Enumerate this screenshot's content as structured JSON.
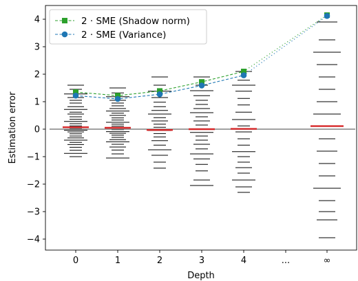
{
  "chart_data": {
    "type": "line",
    "xlabel": "Depth",
    "ylabel": "Estimation error",
    "ylim": [
      -4.4,
      4.5
    ],
    "yticks": [
      {
        "value": 4,
        "label": "4"
      },
      {
        "value": 3,
        "label": "3"
      },
      {
        "value": 2,
        "label": "2"
      },
      {
        "value": 1,
        "label": "1"
      },
      {
        "value": 0,
        "label": "0"
      },
      {
        "value": -1,
        "label": "−1"
      },
      {
        "value": -2,
        "label": "−2"
      },
      {
        "value": -3,
        "label": "−3"
      },
      {
        "value": -4,
        "label": "−4"
      }
    ],
    "categories": [
      "0",
      "1",
      "2",
      "3",
      "4",
      "...",
      "∞"
    ],
    "grid": false,
    "legend_position": "top-left",
    "series": [
      {
        "name": "2 · SME (Shadow norm)",
        "color": "#2ca02c",
        "marker": "square",
        "values": [
          1.35,
          1.22,
          1.39,
          1.72,
          2.1,
          null,
          4.15
        ]
      },
      {
        "name": "2 · SME (Variance)",
        "color": "#1f77b4",
        "marker": "circle",
        "values": [
          1.22,
          1.1,
          1.27,
          1.59,
          1.96,
          null,
          4.12
        ]
      }
    ],
    "mean_error": {
      "color": "#d62728",
      "values": [
        0.07,
        0.05,
        -0.03,
        0.0,
        0.01,
        null,
        0.11
      ]
    },
    "zero_line_color": "#808080",
    "samples": [
      {
        "category": "0",
        "values": [
          1.6,
          1.45,
          1.28,
          1.15,
          1.05,
          0.95,
          0.82,
          0.72,
          0.62,
          0.55,
          0.45,
          0.36,
          0.28,
          0.2,
          0.12,
          0.06,
          0.02,
          -0.04,
          -0.1,
          -0.17,
          -0.25,
          -0.32,
          -0.4,
          -0.48,
          -0.56,
          -0.66,
          -0.77,
          -0.88,
          -1.0
        ]
      },
      {
        "category": "1",
        "values": [
          1.5,
          1.32,
          1.18,
          1.05,
          0.95,
          0.85,
          0.75,
          0.66,
          0.58,
          0.5,
          0.41,
          0.33,
          0.25,
          0.18,
          0.11,
          0.04,
          -0.02,
          -0.09,
          -0.15,
          -0.22,
          -0.3,
          -0.38,
          -0.46,
          -0.55,
          -0.65,
          -0.76,
          -0.9,
          -1.05
        ]
      },
      {
        "category": "2",
        "values": [
          1.9,
          1.6,
          1.38,
          1.15,
          0.98,
          0.82,
          0.68,
          0.55,
          0.42,
          0.3,
          0.18,
          0.07,
          -0.05,
          -0.16,
          -0.28,
          -0.42,
          -0.58,
          -0.75,
          -0.95,
          -1.2,
          -1.42
        ]
      },
      {
        "category": "3",
        "values": [
          1.9,
          1.6,
          1.4,
          1.22,
          1.05,
          0.9,
          0.75,
          0.6,
          0.45,
          0.3,
          0.15,
          0.0,
          -0.12,
          -0.25,
          -0.4,
          -0.55,
          -0.72,
          -0.9,
          -1.08,
          -1.28,
          -1.52,
          -1.85,
          -2.05
        ]
      },
      {
        "category": "4",
        "values": [
          2.1,
          1.78,
          1.6,
          1.38,
          1.12,
          0.88,
          0.62,
          0.35,
          0.12,
          -0.1,
          -0.35,
          -0.58,
          -0.82,
          -1.0,
          -1.2,
          -1.4,
          -1.6,
          -1.85,
          -2.1,
          -2.3
        ]
      },
      {
        "category": "∞",
        "values": [
          3.9,
          3.25,
          2.8,
          2.35,
          1.9,
          1.45,
          1.0,
          0.55,
          -0.35,
          -0.8,
          -1.25,
          -1.7,
          -2.15,
          -2.6,
          -3.0,
          -3.3,
          -3.95
        ]
      }
    ]
  }
}
